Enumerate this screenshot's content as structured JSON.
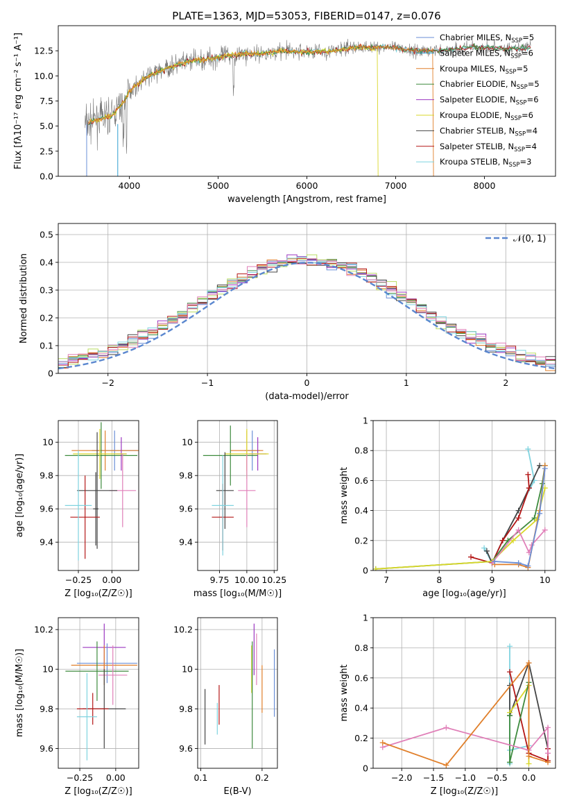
{
  "colors": {
    "Chabrier MILES": "#6a8ed6",
    "Salpeter MILES": "#2e9fd0",
    "Kroupa MILES": "#e07f2a",
    "Chabrier ELODIE": "#3d8a3d",
    "Salpeter ELODIE": "#9b36c0",
    "Kroupa ELODIE": "#d9d72a",
    "Chabrier STELIB": "#444444",
    "Salpeter STELIB": "#b41616",
    "Kroupa STELIB": "#7fd3df",
    "pink": "#e07fb8",
    "lime": "#b9dc61",
    "grid": "#b0b0b0"
  },
  "chart_data": [
    {
      "type": "line",
      "title": "PLATE=1363, MJD=53053, FIBERID=0147, z=0.076",
      "xlabel": "wavelength [Angstrom, rest frame]",
      "ylabel": "Flux [fλ10⁻¹⁷ erg cm⁻² s⁻¹ A⁻¹]",
      "xlim": [
        3200,
        8800
      ],
      "ylim": [
        0,
        15
      ],
      "xticks": [
        4000,
        5000,
        6000,
        7000,
        8000
      ],
      "yticks": [
        0.0,
        2.5,
        5.0,
        7.5,
        10.0,
        12.5
      ],
      "ytick_labels": [
        "0.0",
        "2.5",
        "5.0",
        "7.5",
        "10.0",
        "12.5"
      ],
      "legend": "top-right",
      "legend_entries": [
        {
          "name": "Chabrier MILES",
          "nssp": "5"
        },
        {
          "name": "Salpeter MILES",
          "nssp": "6"
        },
        {
          "name": "Kroupa MILES",
          "nssp": "5"
        },
        {
          "name": "Chabrier ELODIE",
          "nssp": "5"
        },
        {
          "name": "Salpeter ELODIE",
          "nssp": "6"
        },
        {
          "name": "Kroupa ELODIE",
          "nssp": "6"
        },
        {
          "name": "Chabrier STELIB",
          "nssp": "4"
        },
        {
          "name": "Salpeter STELIB",
          "nssp": "4"
        },
        {
          "name": "Kroupa STELIB",
          "nssp": "3"
        }
      ],
      "legend_prefix": "N",
      "legend_sub": "SSP",
      "data_envelope": {
        "x": [
          3500,
          3550,
          3650,
          3800,
          3950,
          4000,
          4100,
          4200,
          4300,
          4500,
          4700,
          4900,
          5100,
          5300,
          5500,
          5700,
          5900,
          6100,
          6300,
          6500,
          6700,
          6900,
          7100,
          7300,
          7500,
          7700,
          7900,
          8100,
          8300,
          8500
        ],
        "y": [
          5.2,
          5.3,
          5.7,
          6.0,
          7.5,
          8.5,
          9.2,
          9.9,
          10.3,
          11.0,
          11.5,
          11.7,
          12.0,
          12.2,
          12.2,
          12.5,
          12.4,
          12.4,
          12.5,
          12.8,
          12.8,
          12.9,
          12.6,
          12.5,
          12.5,
          12.7,
          12.9,
          12.8,
          12.7,
          12.8
        ]
      },
      "model_cutoffs": {
        "Kroupa MILES": 7420,
        "Kroupa ELODIE": 6800,
        "Chabrier MILES": 3520,
        "Salpeter MILES": 3870
      }
    },
    {
      "type": "step",
      "xlabel": "(data-model)/error",
      "ylabel": "Normed distribution",
      "xlim": [
        -2.5,
        2.5
      ],
      "ylim": [
        0,
        0.54
      ],
      "xticks": [
        -2,
        -1,
        0,
        1,
        2
      ],
      "xtick_labels": [
        "−2",
        "−1",
        "0",
        "1",
        "2"
      ],
      "yticks": [
        0.0,
        0.1,
        0.2,
        0.3,
        0.4,
        0.5
      ],
      "legend": "top-right",
      "normal_label": "𝒩(0, 1)",
      "bins": 50,
      "bin_edges_range": [
        -2.5,
        2.5
      ]
    },
    {
      "type": "errorbar",
      "xlabel": "Z [log₁₀(Z/Z☉)]",
      "ylabel": "age  [log₁₀(age/yr)]",
      "xlim": [
        -0.4,
        0.2
      ],
      "ylim": [
        9.23,
        10.13
      ],
      "xticks": [
        -0.25,
        0.0
      ],
      "xtick_labels": [
        "−0.25",
        "0.00"
      ],
      "yticks": [
        9.4,
        9.6,
        9.8,
        10.0
      ],
      "points": [
        {
          "series": "Chabrier MILES",
          "x": 0.02,
          "y": 9.95,
          "xerr": 0.17,
          "yerr": 0.12
        },
        {
          "series": "Kroupa MILES",
          "x": -0.05,
          "y": 9.95,
          "xerr": 0.25,
          "yerr": 0.12
        },
        {
          "series": "Chabrier ELODIE",
          "x": -0.08,
          "y": 9.92,
          "xerr": 0.27,
          "yerr": 0.2
        },
        {
          "series": "Salpeter ELODIE",
          "x": 0.07,
          "y": 9.93,
          "xerr": 0.04,
          "yerr": 0.1
        },
        {
          "series": "Kroupa ELODIE",
          "x": -0.09,
          "y": 9.93,
          "xerr": 0.2,
          "yerr": 0.15
        },
        {
          "series": "pink",
          "x": 0.08,
          "y": 9.71,
          "xerr": 0.1,
          "yerr": 0.22
        },
        {
          "series": "Chabrier STELIB",
          "x": -0.11,
          "y": 9.71,
          "xerr": 0.15,
          "yerr": 0.35
        },
        {
          "series": "Chabrier STELIB",
          "x": -0.12,
          "y": 9.6,
          "xerr": 0.02,
          "yerr": 0.22
        },
        {
          "series": "Salpeter STELIB",
          "x": -0.2,
          "y": 9.55,
          "xerr": 0.11,
          "yerr": 0.25
        },
        {
          "series": "Kroupa STELIB",
          "x": -0.25,
          "y": 9.62,
          "xerr": 0.1,
          "yerr": 0.33
        }
      ]
    },
    {
      "type": "errorbar",
      "xlabel": "mass [log₁₀(M/M☉)]",
      "xlim": [
        9.55,
        10.28
      ],
      "ylim": [
        9.23,
        10.13
      ],
      "xticks": [
        9.75,
        10.0,
        10.25
      ],
      "xtick_labels": [
        "9.75",
        "10.00",
        "10.25"
      ],
      "yticks": [
        9.4,
        9.6,
        9.8,
        10.0
      ],
      "points": [
        {
          "series": "Chabrier MILES",
          "x": 10.05,
          "y": 9.95,
          "xerr": 0.07,
          "yerr": 0.12
        },
        {
          "series": "Kroupa MILES",
          "x": 10.0,
          "y": 9.95,
          "xerr": 0.15,
          "yerr": 0.12
        },
        {
          "series": "Chabrier ELODIE",
          "x": 9.85,
          "y": 9.92,
          "xerr": 0.25,
          "yerr": 0.18
        },
        {
          "series": "Salpeter ELODIE",
          "x": 10.1,
          "y": 9.93,
          "xerr": 0.08,
          "yerr": 0.1
        },
        {
          "series": "Kroupa ELODIE",
          "x": 10.0,
          "y": 9.93,
          "xerr": 0.2,
          "yerr": 0.15
        },
        {
          "series": "pink",
          "x": 10.0,
          "y": 9.71,
          "xerr": 0.08,
          "yerr": 0.22
        },
        {
          "series": "Chabrier STELIB",
          "x": 9.8,
          "y": 9.71,
          "xerr": 0.08,
          "yerr": 0.23
        },
        {
          "series": "Salpeter STELIB",
          "x": 9.78,
          "y": 9.55,
          "xerr": 0.1,
          "yerr": 0.2
        },
        {
          "series": "Kroupa STELIB",
          "x": 9.78,
          "y": 9.62,
          "xerr": 0.1,
          "yerr": 0.3
        }
      ]
    },
    {
      "type": "line",
      "xlabel": "age  [log₁₀(age/yr)]",
      "ylabel": "mass weight",
      "xlim": [
        6.75,
        10.2
      ],
      "ylim": [
        0,
        1.0
      ],
      "xticks": [
        7,
        8,
        9,
        10
      ],
      "yticks": [
        0.0,
        0.2,
        0.4,
        0.6,
        0.8,
        1.0
      ],
      "series": [
        {
          "name": "Kroupa STELIB",
          "x": [
            8.85,
            9.0,
            9.2,
            9.5,
            9.8,
            9.68
          ],
          "y": [
            0.15,
            0.05,
            0.2,
            0.4,
            0.6,
            0.81
          ]
        },
        {
          "name": "Chabrier STELIB",
          "x": [
            8.9,
            9.0,
            9.2,
            9.5,
            9.7,
            9.9
          ],
          "y": [
            0.13,
            0.05,
            0.2,
            0.4,
            0.55,
            0.7
          ]
        },
        {
          "name": "Salpeter STELIB",
          "x": [
            8.6,
            9.0,
            9.2,
            9.5,
            9.7,
            9.68
          ],
          "y": [
            0.09,
            0.05,
            0.2,
            0.35,
            0.55,
            0.64
          ]
        },
        {
          "name": "Chabrier ELODIE",
          "x": [
            6.8,
            9.0,
            9.3,
            9.8,
            9.95,
            10.0
          ],
          "y": [
            0.01,
            0.06,
            0.2,
            0.35,
            0.58,
            0.7
          ]
        },
        {
          "name": "Kroupa ELODIE",
          "x": [
            6.8,
            9.0,
            9.4,
            9.85,
            10.0
          ],
          "y": [
            0.01,
            0.06,
            0.2,
            0.34,
            0.55
          ]
        },
        {
          "name": "pink",
          "x": [
            9.0,
            9.5,
            9.7,
            9.75,
            10.0
          ],
          "y": [
            0.05,
            0.27,
            0.12,
            0.17,
            0.27
          ]
        },
        {
          "name": "Kroupa MILES",
          "x": [
            9.05,
            9.5,
            9.68,
            9.9,
            10.0
          ],
          "y": [
            0.04,
            0.04,
            0.02,
            0.4,
            0.7
          ]
        },
        {
          "name": "Chabrier MILES",
          "x": [
            9.05,
            9.5,
            9.68,
            9.9,
            10.0
          ],
          "y": [
            0.06,
            0.05,
            0.03,
            0.38,
            0.68
          ]
        }
      ]
    },
    {
      "type": "errorbar",
      "xlabel": "Z [log₁₀(Z/Z☉)]",
      "ylabel": "mass [log₁₀(M/M☉)]",
      "xlim": [
        -0.4,
        0.16
      ],
      "ylim": [
        9.5,
        10.26
      ],
      "xticks": [
        -0.25,
        0.0
      ],
      "xtick_labels": [
        "−0.25",
        "0.00"
      ],
      "yticks": [
        9.6,
        9.8,
        10.0,
        10.2
      ],
      "points": [
        {
          "series": "Salpeter ELODIE",
          "x": -0.08,
          "y": 10.11,
          "xerr": 0.15,
          "yerr": 0.12
        },
        {
          "series": "Chabrier MILES",
          "x": -0.06,
          "y": 10.03,
          "xerr": 0.21,
          "yerr": 0.1
        },
        {
          "series": "Kroupa MILES",
          "x": -0.08,
          "y": 10.02,
          "xerr": 0.23,
          "yerr": 0.1
        },
        {
          "series": "Chabrier ELODIE",
          "x": -0.13,
          "y": 9.99,
          "xerr": 0.22,
          "yerr": 0.15
        },
        {
          "series": "pink",
          "x": -0.02,
          "y": 9.97,
          "xerr": 0.1,
          "yerr": 0.15
        },
        {
          "series": "Chabrier STELIB",
          "x": -0.08,
          "y": 9.8,
          "xerr": 0.15,
          "yerr": 0.2
        },
        {
          "series": "Salpeter STELIB",
          "x": -0.16,
          "y": 9.8,
          "xerr": 0.11,
          "yerr": 0.08
        },
        {
          "series": "Kroupa STELIB",
          "x": -0.2,
          "y": 9.76,
          "xerr": 0.07,
          "yerr": 0.22
        }
      ]
    },
    {
      "type": "errorbar",
      "xlabel": "E(B-V)",
      "xlim": [
        0.095,
        0.225
      ],
      "ylim": [
        9.5,
        10.26
      ],
      "xticks": [
        0.1,
        0.2
      ],
      "xtick_labels": [
        "0.1",
        "0.2"
      ],
      "yticks": [
        9.6,
        9.8,
        10.0,
        10.2
      ],
      "points": [
        {
          "series": "Chabrier STELIB",
          "x": 0.107,
          "y": 9.76,
          "xerr": 0,
          "yerr": 0.14
        },
        {
          "series": "Kroupa STELIB",
          "x": 0.127,
          "y": 9.75,
          "xerr": 0,
          "yerr": 0.08
        },
        {
          "series": "Salpeter STELIB",
          "x": 0.13,
          "y": 9.82,
          "xerr": 0,
          "yerr": 0.1
        },
        {
          "series": "Kroupa ELODIE",
          "x": 0.183,
          "y": 10.0,
          "xerr": 0,
          "yerr": 0.12
        },
        {
          "series": "Chabrier ELODIE",
          "x": 0.184,
          "y": 9.87,
          "xerr": 0,
          "yerr": 0.27
        },
        {
          "series": "Salpeter ELODIE",
          "x": 0.187,
          "y": 10.1,
          "xerr": 0,
          "yerr": 0.13
        },
        {
          "series": "pink",
          "x": 0.191,
          "y": 10.05,
          "xerr": 0,
          "yerr": 0.13
        },
        {
          "series": "Kroupa MILES",
          "x": 0.2,
          "y": 9.9,
          "xerr": 0,
          "yerr": 0.12
        },
        {
          "series": "Chabrier MILES",
          "x": 0.22,
          "y": 9.93,
          "xerr": 0,
          "yerr": 0.17
        }
      ]
    },
    {
      "type": "line",
      "xlabel": "Z [log₁₀(Z/Z☉)]",
      "ylabel": "mass weight",
      "xlim": [
        -2.45,
        0.42
      ],
      "ylim": [
        0,
        1.0
      ],
      "xticks": [
        -2.0,
        -1.5,
        -1.0,
        -0.5,
        0.0
      ],
      "xtick_labels": [
        "−2.0",
        "−1.5",
        "−1.0",
        "−0.5",
        "0.0"
      ],
      "yticks": [
        0.0,
        0.2,
        0.4,
        0.6,
        0.8,
        1.0
      ],
      "series": [
        {
          "name": "Kroupa STELIB",
          "x": [
            -0.3,
            -0.3,
            -0.3,
            0.0
          ],
          "y": [
            0.81,
            0.03,
            0.12,
            0.15
          ]
        },
        {
          "name": "Chabrier STELIB",
          "x": [
            -0.3,
            -0.3,
            0.0,
            0.3
          ],
          "y": [
            0.55,
            0.35,
            0.7,
            0.13
          ]
        },
        {
          "name": "Salpeter STELIB",
          "x": [
            -0.3,
            0.0,
            0.3,
            0.3
          ],
          "y": [
            0.64,
            0.1,
            0.05,
            0.13
          ]
        },
        {
          "name": "Kroupa ELODIE",
          "x": [
            -0.3,
            0.0,
            0.0
          ],
          "y": [
            0.37,
            0.55,
            0.03
          ]
        },
        {
          "name": "Chabrier ELODIE",
          "x": [
            -0.3,
            -0.3,
            0.0
          ],
          "y": [
            0.35,
            0.04,
            0.57
          ]
        },
        {
          "name": "pink",
          "x": [
            -2.3,
            -1.3,
            0.0,
            0.3,
            0.3
          ],
          "y": [
            0.14,
            0.27,
            0.12,
            0.27,
            0.1
          ]
        },
        {
          "name": "Kroupa MILES",
          "x": [
            -2.3,
            -1.3,
            0.0,
            0.0,
            0.3
          ],
          "y": [
            0.17,
            0.02,
            0.7,
            0.08,
            0.04
          ]
        }
      ]
    }
  ]
}
